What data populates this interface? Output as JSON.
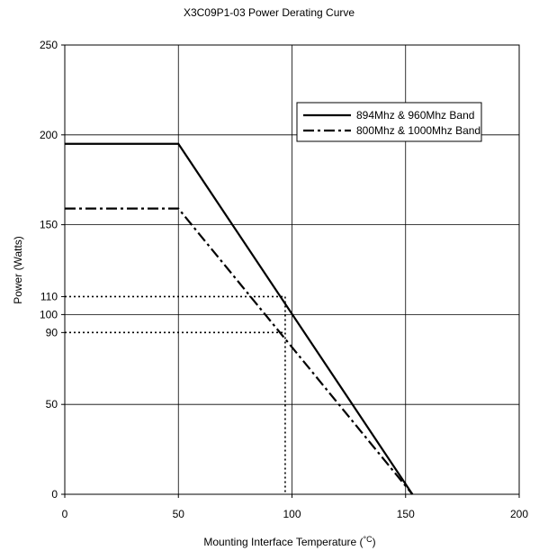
{
  "chart_data": {
    "type": "line",
    "title": "X3C09P1-03 Power Derating Curve",
    "xlabel": "Mounting Interface Temperature (",
    "xlabel_unit": "°C",
    "xlabel_close": ")",
    "ylabel": "Power (Watts)",
    "xlim": [
      0,
      200
    ],
    "ylim": [
      0,
      250
    ],
    "xticks": [
      0,
      50,
      100,
      150,
      200
    ],
    "yticks": [
      0,
      50,
      90,
      100,
      110,
      150,
      200,
      250
    ],
    "xgrid": [
      50,
      100,
      150
    ],
    "ygrid": [
      50,
      100,
      150,
      200
    ],
    "grid": true,
    "legend_position": "top-right",
    "series": [
      {
        "name": "894Mhz & 960Mhz Band",
        "style": "solid",
        "color": "#000000",
        "points": [
          [
            0,
            195
          ],
          [
            50,
            195
          ],
          [
            153,
            0
          ]
        ]
      },
      {
        "name": "800Mhz & 1000Mhz Band",
        "style": "dash-dot",
        "color": "#000000",
        "points": [
          [
            0,
            159
          ],
          [
            50,
            159
          ],
          [
            153,
            0
          ]
        ]
      }
    ],
    "reference_lines": [
      {
        "style": "dotted",
        "points": [
          [
            0,
            110
          ],
          [
            97,
            110
          ],
          [
            97,
            0
          ]
        ]
      },
      {
        "style": "dotted",
        "points": [
          [
            0,
            90
          ],
          [
            97,
            90
          ]
        ]
      }
    ]
  }
}
